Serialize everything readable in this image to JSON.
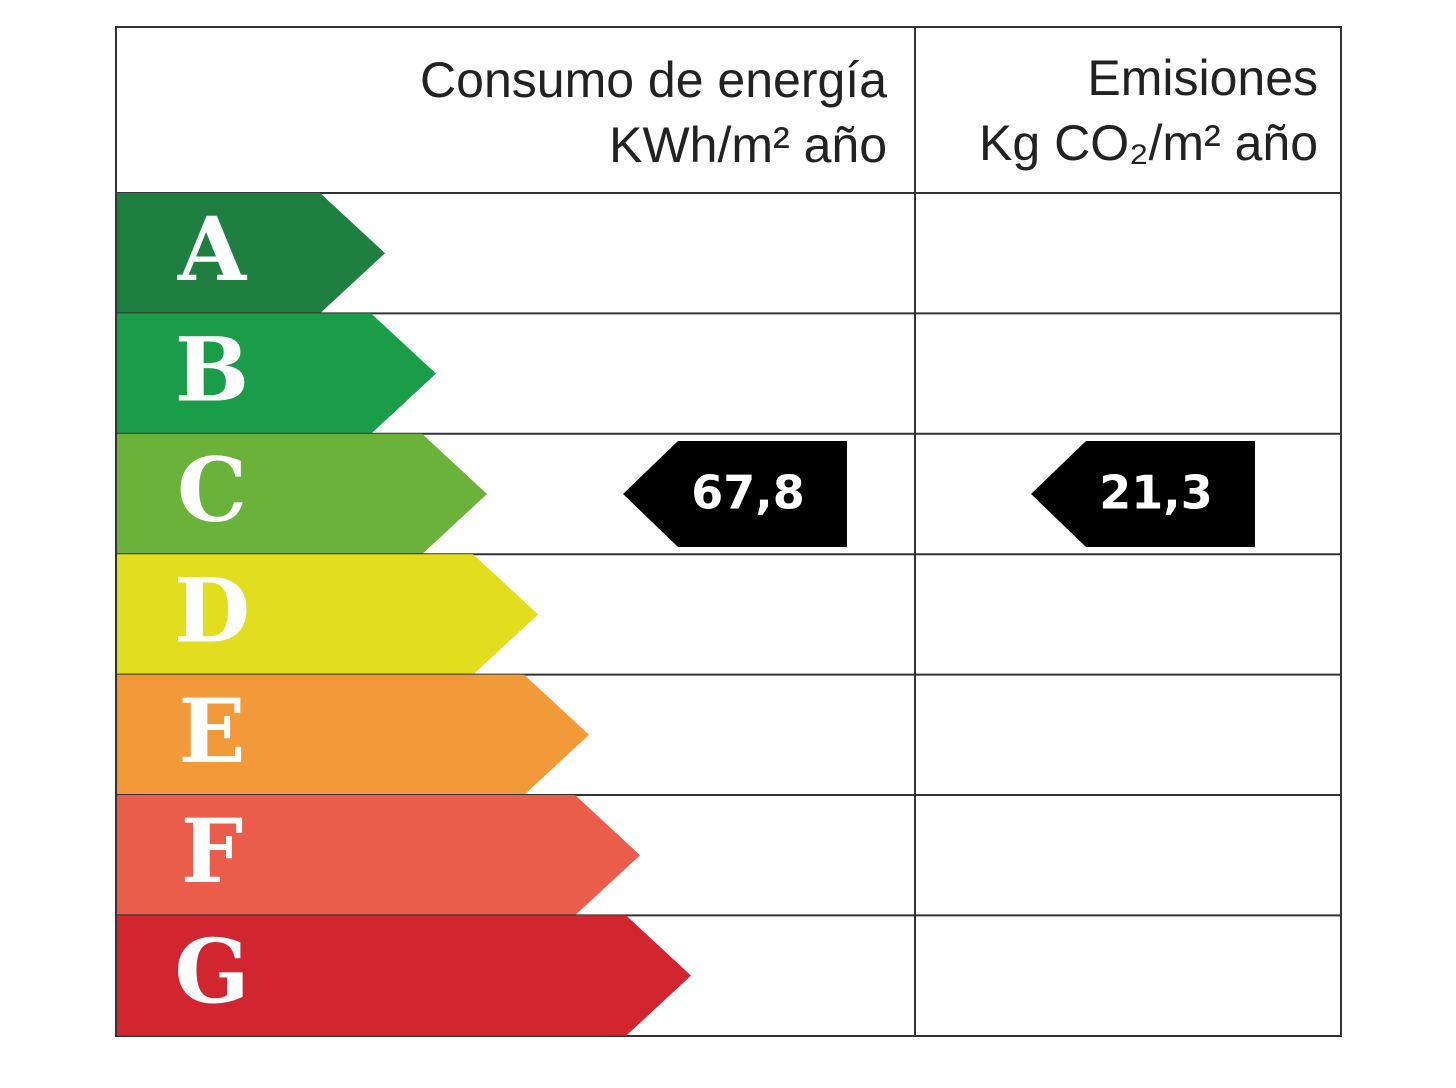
{
  "header": {
    "energy_title": "Consumo de energía",
    "energy_unit": "KWh/m² año",
    "emissions_title": "Emisiones",
    "emissions_unit": "Kg CO₂/m² año"
  },
  "ratings": [
    {
      "letter": "A",
      "color": "#1e7f40"
    },
    {
      "letter": "B",
      "color": "#1b9c48"
    },
    {
      "letter": "C",
      "color": "#6ab23a"
    },
    {
      "letter": "D",
      "color": "#e2dd1f"
    },
    {
      "letter": "E",
      "color": "#f29a3a"
    },
    {
      "letter": "F",
      "color": "#e95d4a"
    },
    {
      "letter": "G",
      "color": "#d12530"
    }
  ],
  "energy": {
    "rating": "C",
    "value": "67,8"
  },
  "emissions": {
    "rating": "C",
    "value": "21,3"
  }
}
